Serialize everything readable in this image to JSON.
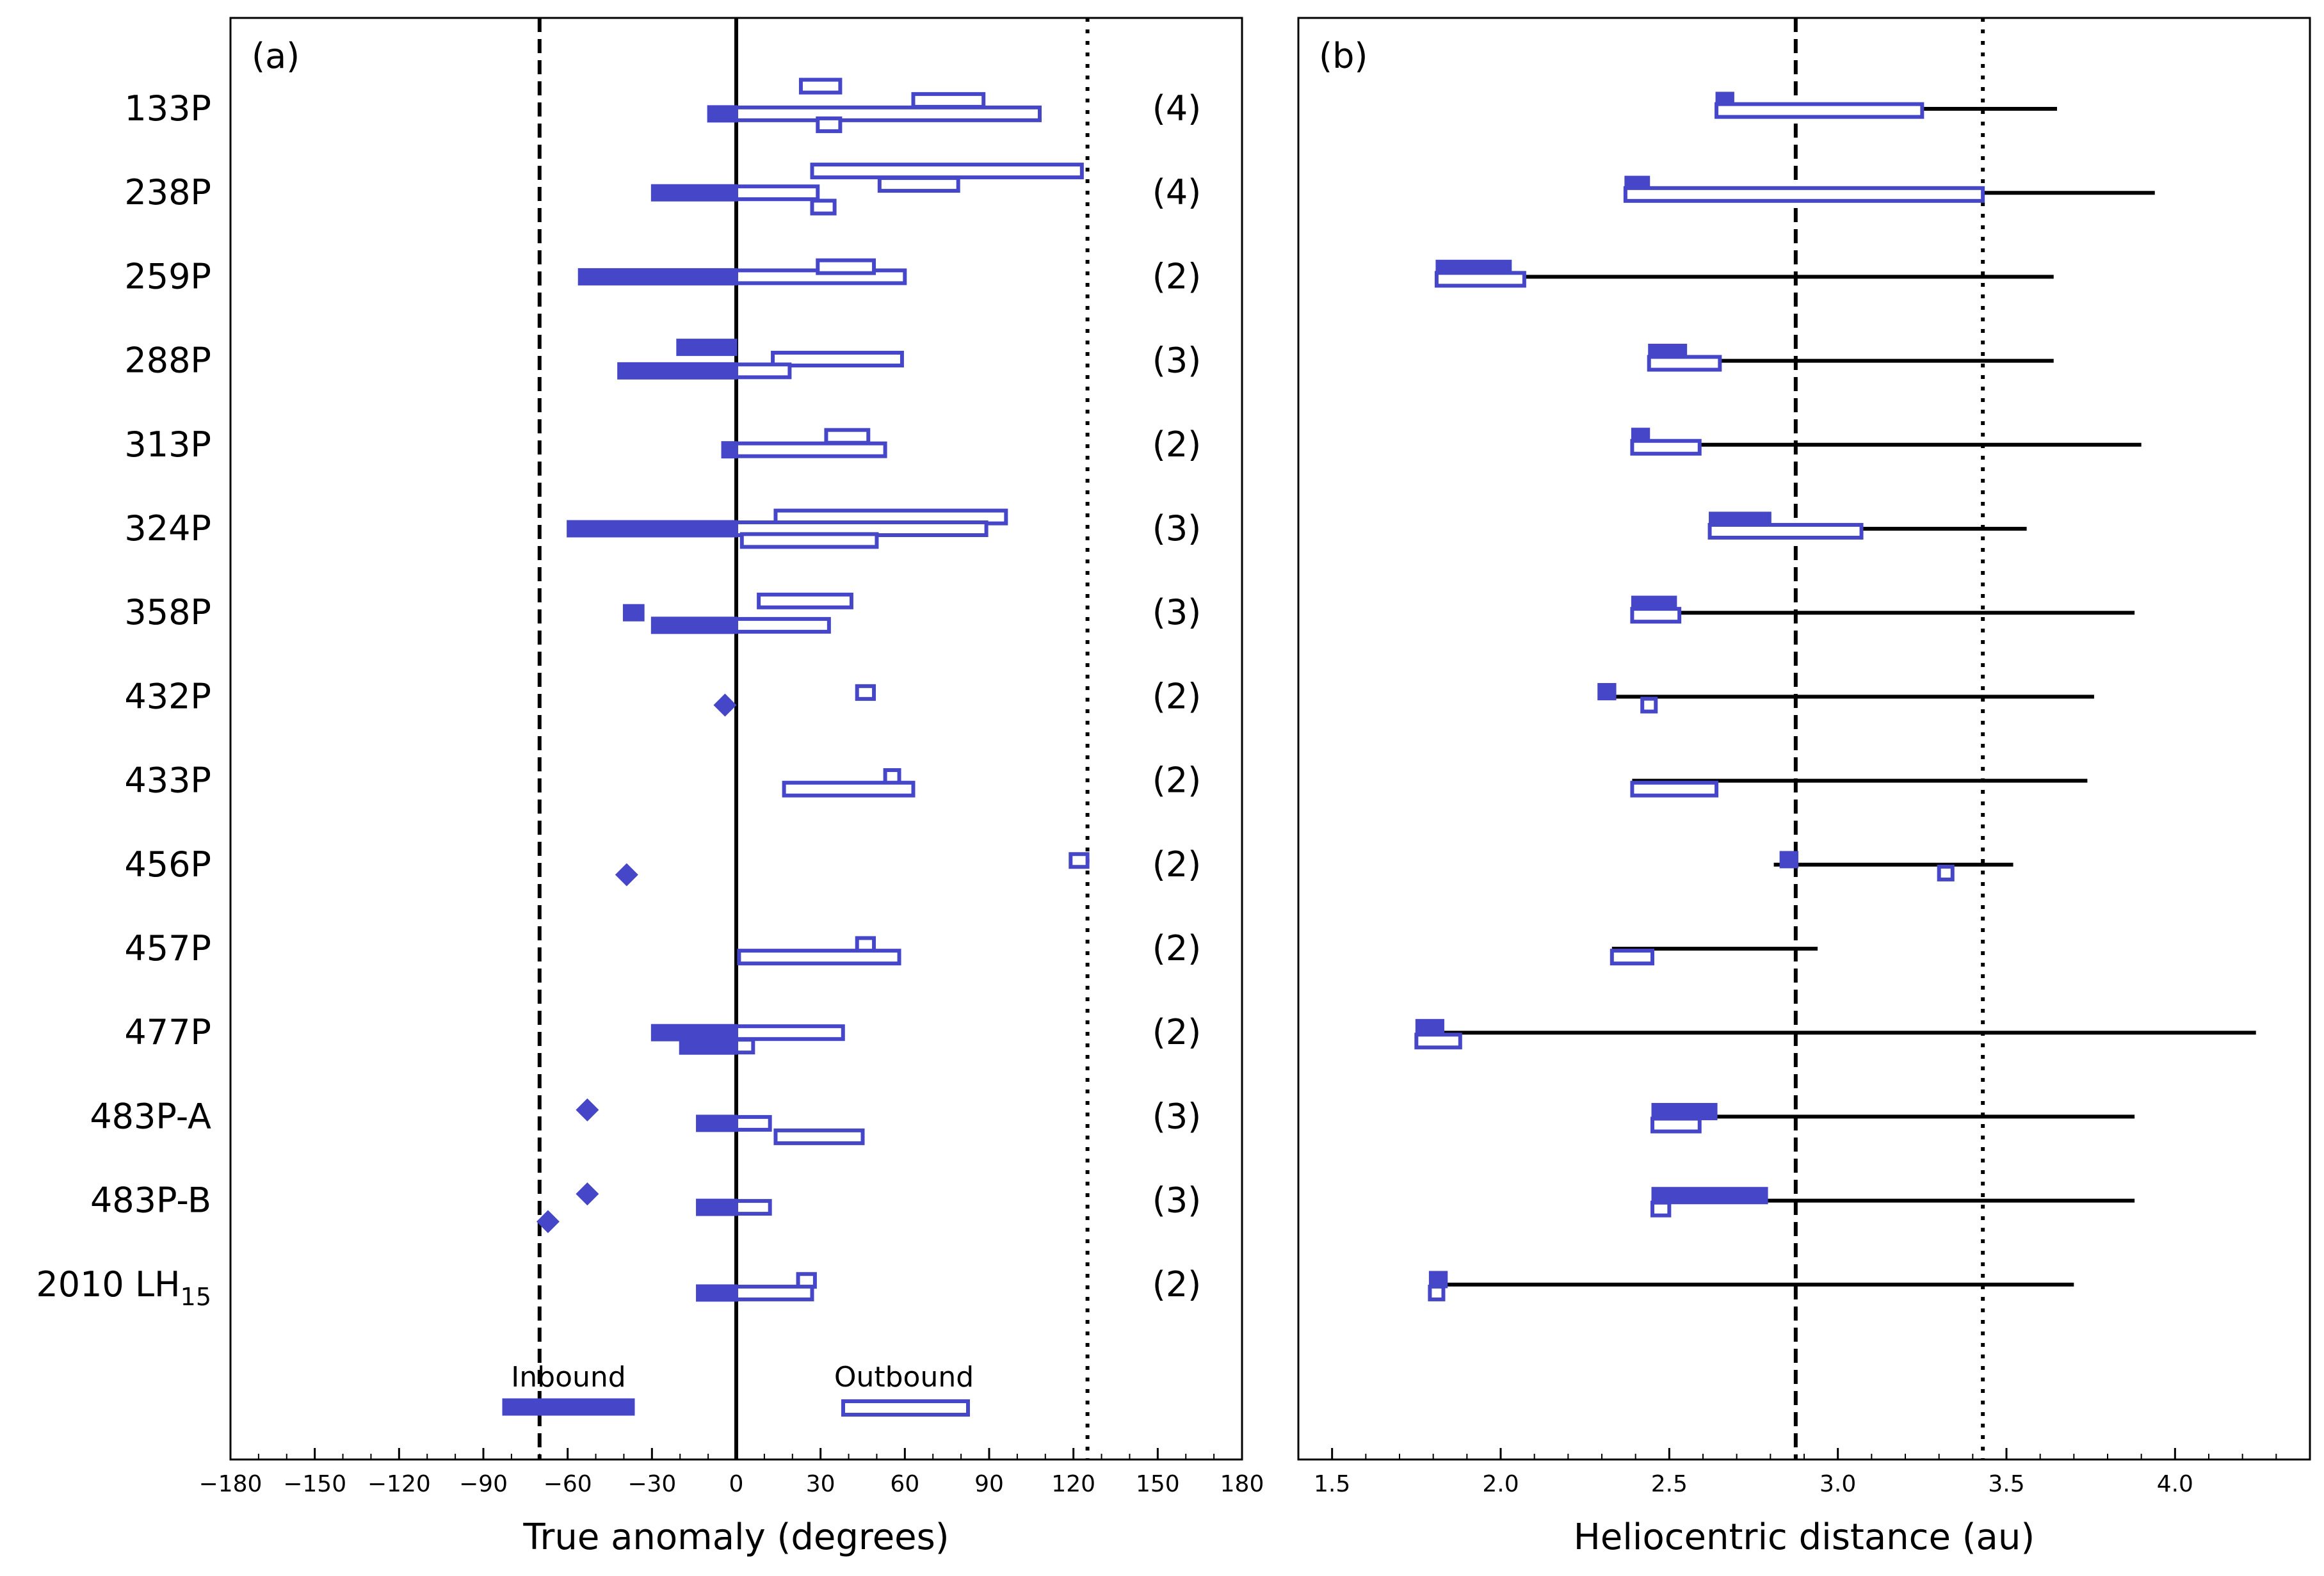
{
  "colors": {
    "accent": "#4646c8",
    "ink": "#000000"
  },
  "rows": [
    {
      "html": "133P",
      "count": "(4)"
    },
    {
      "html": "238P",
      "count": "(4)"
    },
    {
      "html": "259P",
      "count": "(2)"
    },
    {
      "html": "288P",
      "count": "(3)"
    },
    {
      "html": "313P",
      "count": "(2)"
    },
    {
      "html": "324P",
      "count": "(3)"
    },
    {
      "html": "358P",
      "count": "(3)"
    },
    {
      "html": "432P",
      "count": "(2)"
    },
    {
      "html": "433P",
      "count": "(2)"
    },
    {
      "html": "456P",
      "count": "(2)"
    },
    {
      "html": "457P",
      "count": "(2)"
    },
    {
      "html": "477P",
      "count": "(2)"
    },
    {
      "html": "483P-A",
      "count": "(3)"
    },
    {
      "html": "483P-B",
      "count": "(3)"
    },
    {
      "html": "2010 LH<tspan dy=\"14\" font-size=\"38\">15</tspan>",
      "count": "(2)"
    }
  ],
  "chart_data": [
    {
      "type": "bar",
      "panel_label": "(a)",
      "xlabel": "True anomaly (degrees)",
      "xlim": [
        -180,
        180
      ],
      "xticks": [
        -180,
        -150,
        -120,
        -90,
        -60,
        -30,
        0,
        30,
        60,
        90,
        120,
        150,
        180
      ],
      "vlines": [
        {
          "x": -70,
          "style": "dashed"
        },
        {
          "x": 0,
          "style": "solid"
        },
        {
          "x": 125,
          "style": "dotted"
        }
      ],
      "legend": {
        "inbound_label": "Inbound",
        "outbound_label": "Outbound"
      },
      "bars": [
        {
          "row": 0,
          "off": -0.06,
          "kind": "filled",
          "x0": -10,
          "x1": 0
        },
        {
          "row": 0,
          "off": -0.06,
          "kind": "open",
          "x0": 0,
          "x1": 108
        },
        {
          "row": 0,
          "off": 0.1,
          "kind": "open",
          "x0": 63,
          "x1": 88
        },
        {
          "row": 0,
          "off": 0.27,
          "kind": "open",
          "x0": 23,
          "x1": 37
        },
        {
          "row": 0,
          "off": -0.19,
          "kind": "open",
          "x0": 29,
          "x1": 37
        },
        {
          "row": 1,
          "off": 0.0,
          "kind": "filled",
          "x0": -30,
          "x1": 0
        },
        {
          "row": 1,
          "off": 0.0,
          "kind": "open",
          "x0": 0,
          "x1": 29
        },
        {
          "row": 1,
          "off": 0.1,
          "kind": "open",
          "x0": 51,
          "x1": 79
        },
        {
          "row": 1,
          "off": 0.26,
          "kind": "open",
          "x0": 27,
          "x1": 123
        },
        {
          "row": 1,
          "off": -0.17,
          "kind": "open",
          "x0": 27,
          "x1": 35
        },
        {
          "row": 2,
          "off": 0.0,
          "kind": "filled",
          "x0": -56,
          "x1": 0
        },
        {
          "row": 2,
          "off": 0.0,
          "kind": "open",
          "x0": 0,
          "x1": 60
        },
        {
          "row": 2,
          "off": 0.12,
          "kind": "open",
          "x0": 29,
          "x1": 49
        },
        {
          "row": 3,
          "off": 0.16,
          "kind": "filled",
          "x0": -21,
          "x1": 0
        },
        {
          "row": 3,
          "off": 0.02,
          "kind": "open",
          "x0": 13,
          "x1": 59
        },
        {
          "row": 3,
          "off": -0.12,
          "kind": "filled",
          "x0": -42,
          "x1": 0
        },
        {
          "row": 3,
          "off": -0.12,
          "kind": "open",
          "x0": 0,
          "x1": 19
        },
        {
          "row": 4,
          "off": -0.06,
          "kind": "filled",
          "x0": -5,
          "x1": 0
        },
        {
          "row": 4,
          "off": -0.06,
          "kind": "open",
          "x0": 0,
          "x1": 53
        },
        {
          "row": 4,
          "off": 0.1,
          "kind": "open",
          "x0": 32,
          "x1": 47
        },
        {
          "row": 5,
          "off": 0.14,
          "kind": "open",
          "x0": 14,
          "x1": 96
        },
        {
          "row": 5,
          "off": 0.0,
          "kind": "filled",
          "x0": -60,
          "x1": 0
        },
        {
          "row": 5,
          "off": 0.0,
          "kind": "open",
          "x0": 0,
          "x1": 89
        },
        {
          "row": 5,
          "off": -0.14,
          "kind": "open",
          "x0": 2,
          "x1": 50
        },
        {
          "row": 6,
          "off": 0.14,
          "kind": "open",
          "x0": 8,
          "x1": 41
        },
        {
          "row": 6,
          "off": 0.0,
          "kind": "filled",
          "x0": -40,
          "x1": -33
        },
        {
          "row": 6,
          "off": -0.15,
          "kind": "filled",
          "x0": -30,
          "x1": 0
        },
        {
          "row": 6,
          "off": -0.15,
          "kind": "open",
          "x0": 0,
          "x1": 33
        },
        {
          "row": 7,
          "off": 0.05,
          "kind": "open",
          "x0": 43,
          "x1": 49
        },
        {
          "row": 8,
          "off": 0.05,
          "kind": "open",
          "x0": 53,
          "x1": 58
        },
        {
          "row": 8,
          "off": -0.1,
          "kind": "open",
          "x0": 17,
          "x1": 63
        },
        {
          "row": 9,
          "off": 0.05,
          "kind": "open",
          "x0": 119,
          "x1": 125
        },
        {
          "row": 10,
          "off": 0.05,
          "kind": "open",
          "x0": 43,
          "x1": 49
        },
        {
          "row": 10,
          "off": -0.1,
          "kind": "open",
          "x0": 1,
          "x1": 58
        },
        {
          "row": 11,
          "off": 0.0,
          "kind": "filled",
          "x0": -30,
          "x1": 0
        },
        {
          "row": 11,
          "off": 0.0,
          "kind": "open",
          "x0": 0,
          "x1": 38
        },
        {
          "row": 11,
          "off": -0.16,
          "kind": "filled",
          "x0": -20,
          "x1": 0
        },
        {
          "row": 11,
          "off": -0.16,
          "kind": "open",
          "x0": 0,
          "x1": 6
        },
        {
          "row": 12,
          "off": -0.08,
          "kind": "filled",
          "x0": -14,
          "x1": 0
        },
        {
          "row": 12,
          "off": -0.08,
          "kind": "open",
          "x0": 0,
          "x1": 12
        },
        {
          "row": 12,
          "off": -0.24,
          "kind": "open",
          "x0": 14,
          "x1": 45
        },
        {
          "row": 13,
          "off": -0.08,
          "kind": "filled",
          "x0": -14,
          "x1": 0
        },
        {
          "row": 13,
          "off": -0.08,
          "kind": "open",
          "x0": 0,
          "x1": 12
        },
        {
          "row": 14,
          "off": 0.05,
          "kind": "open",
          "x0": 22,
          "x1": 28
        },
        {
          "row": 14,
          "off": -0.1,
          "kind": "filled",
          "x0": -14,
          "x1": 0
        },
        {
          "row": 14,
          "off": -0.1,
          "kind": "open",
          "x0": 0,
          "x1": 27
        }
      ],
      "markers": [
        {
          "row": 7,
          "off": -0.1,
          "x": -4
        },
        {
          "row": 9,
          "off": -0.12,
          "x": -39
        },
        {
          "row": 12,
          "off": 0.08,
          "x": -53
        },
        {
          "row": 13,
          "off": 0.08,
          "x": -53
        },
        {
          "row": 13,
          "off": -0.25,
          "x": -67
        }
      ]
    },
    {
      "type": "bar",
      "panel_label": "(b)",
      "xlabel": "Heliocentric distance (au)",
      "xlim": [
        1.4,
        4.4
      ],
      "xticks": [
        1.5,
        2.0,
        2.5,
        3.0,
        3.5,
        4.0
      ],
      "xtick_labels": [
        "1.5",
        "2.0",
        "2.5",
        "3.0",
        "3.5",
        "4.0"
      ],
      "vlines": [
        {
          "x": 2.875,
          "style": "dashed"
        },
        {
          "x": 3.43,
          "style": "dotted"
        }
      ],
      "ranges": [
        {
          "row": 0,
          "min": 2.64,
          "max": 3.65
        },
        {
          "row": 1,
          "min": 2.37,
          "max": 3.94
        },
        {
          "row": 2,
          "min": 1.81,
          "max": 3.64
        },
        {
          "row": 3,
          "min": 2.44,
          "max": 3.64
        },
        {
          "row": 4,
          "min": 2.39,
          "max": 3.9
        },
        {
          "row": 5,
          "min": 2.62,
          "max": 3.56
        },
        {
          "row": 6,
          "min": 2.39,
          "max": 3.88
        },
        {
          "row": 7,
          "min": 2.31,
          "max": 3.76
        },
        {
          "row": 8,
          "min": 2.39,
          "max": 3.74
        },
        {
          "row": 9,
          "min": 2.81,
          "max": 3.52
        },
        {
          "row": 10,
          "min": 2.33,
          "max": 2.94
        },
        {
          "row": 11,
          "min": 1.75,
          "max": 4.24
        },
        {
          "row": 12,
          "min": 2.45,
          "max": 3.88
        },
        {
          "row": 13,
          "min": 2.45,
          "max": 3.88
        },
        {
          "row": 14,
          "min": 1.79,
          "max": 3.7
        }
      ],
      "bars": [
        {
          "row": 0,
          "off": 0.1,
          "kind": "filled",
          "x0": 2.64,
          "x1": 2.69
        },
        {
          "row": 0,
          "off": -0.02,
          "kind": "open",
          "x0": 2.64,
          "x1": 3.25
        },
        {
          "row": 1,
          "off": 0.1,
          "kind": "filled",
          "x0": 2.37,
          "x1": 2.44
        },
        {
          "row": 1,
          "off": -0.02,
          "kind": "open",
          "x0": 2.37,
          "x1": 3.43
        },
        {
          "row": 2,
          "off": 0.1,
          "kind": "filled",
          "x0": 1.81,
          "x1": 2.03
        },
        {
          "row": 2,
          "off": -0.03,
          "kind": "open",
          "x0": 1.81,
          "x1": 2.07
        },
        {
          "row": 3,
          "off": 0.1,
          "kind": "filled",
          "x0": 2.44,
          "x1": 2.55
        },
        {
          "row": 3,
          "off": -0.03,
          "kind": "open",
          "x0": 2.44,
          "x1": 2.65
        },
        {
          "row": 4,
          "off": 0.1,
          "kind": "filled",
          "x0": 2.39,
          "x1": 2.44
        },
        {
          "row": 4,
          "off": -0.03,
          "kind": "open",
          "x0": 2.39,
          "x1": 2.59
        },
        {
          "row": 5,
          "off": 0.1,
          "kind": "filled",
          "x0": 2.62,
          "x1": 2.8
        },
        {
          "row": 5,
          "off": -0.03,
          "kind": "open",
          "x0": 2.62,
          "x1": 3.07
        },
        {
          "row": 6,
          "off": 0.1,
          "kind": "filled",
          "x0": 2.39,
          "x1": 2.52
        },
        {
          "row": 6,
          "off": -0.03,
          "kind": "open",
          "x0": 2.39,
          "x1": 2.53
        },
        {
          "row": 7,
          "off": 0.06,
          "kind": "filled",
          "x0": 2.29,
          "x1": 2.34
        },
        {
          "row": 7,
          "off": -0.1,
          "kind": "open",
          "x0": 2.42,
          "x1": 2.46
        },
        {
          "row": 8,
          "off": -0.1,
          "kind": "open",
          "x0": 2.39,
          "x1": 2.64
        },
        {
          "row": 9,
          "off": 0.06,
          "kind": "filled",
          "x0": 2.83,
          "x1": 2.88
        },
        {
          "row": 9,
          "off": -0.1,
          "kind": "open",
          "x0": 3.3,
          "x1": 3.34
        },
        {
          "row": 10,
          "off": -0.1,
          "kind": "open",
          "x0": 2.33,
          "x1": 2.45
        },
        {
          "row": 11,
          "off": 0.06,
          "kind": "filled",
          "x0": 1.75,
          "x1": 1.83
        },
        {
          "row": 11,
          "off": -0.1,
          "kind": "open",
          "x0": 1.75,
          "x1": 1.88
        },
        {
          "row": 12,
          "off": 0.06,
          "kind": "filled",
          "x0": 2.45,
          "x1": 2.64
        },
        {
          "row": 12,
          "off": -0.1,
          "kind": "open",
          "x0": 2.45,
          "x1": 2.59
        },
        {
          "row": 13,
          "off": 0.06,
          "kind": "filled",
          "x0": 2.45,
          "x1": 2.79
        },
        {
          "row": 13,
          "off": -0.1,
          "kind": "open",
          "x0": 2.45,
          "x1": 2.5
        },
        {
          "row": 14,
          "off": 0.06,
          "kind": "filled",
          "x0": 1.79,
          "x1": 1.84
        },
        {
          "row": 14,
          "off": -0.1,
          "kind": "open",
          "x0": 1.79,
          "x1": 1.83
        }
      ]
    }
  ]
}
